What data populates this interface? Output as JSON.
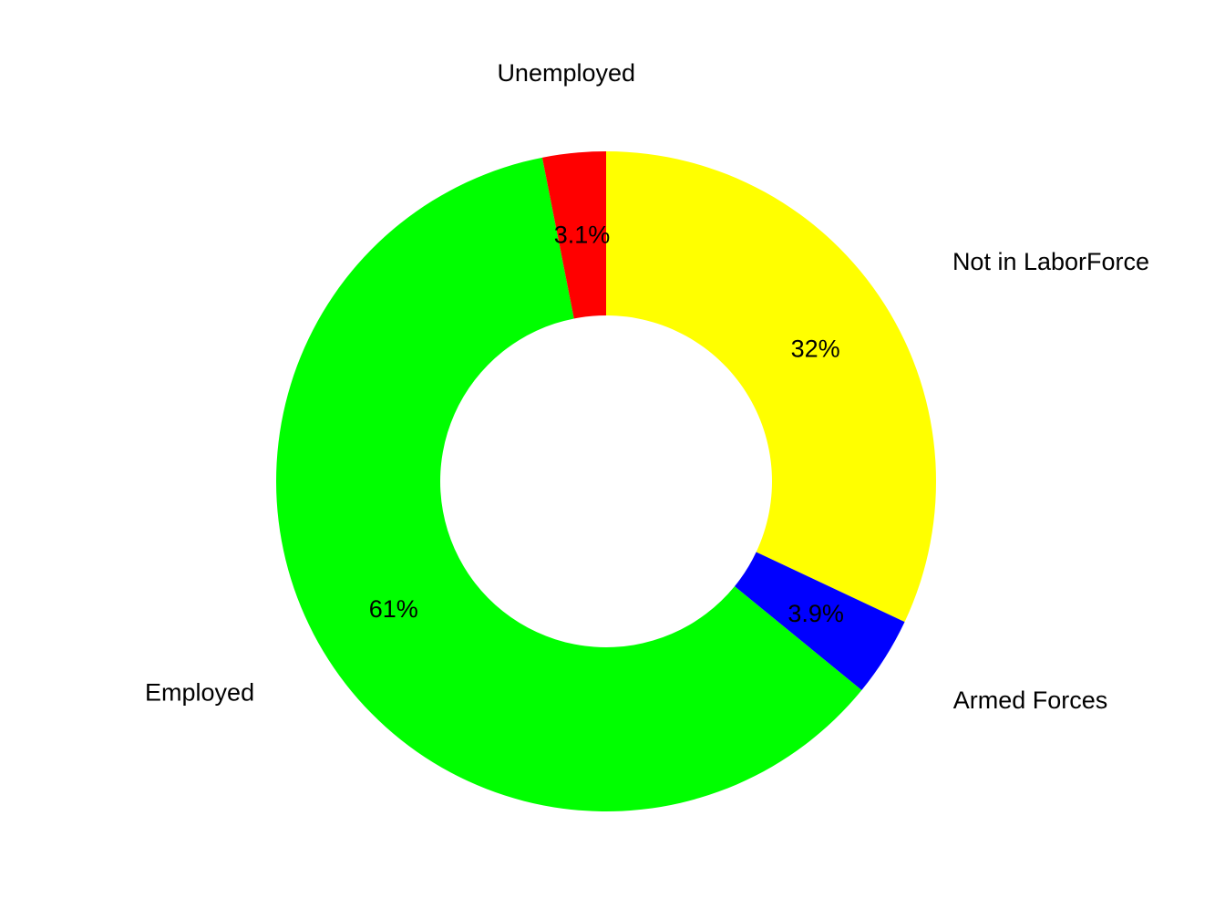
{
  "chart_data": {
    "type": "pie",
    "donut": true,
    "start_angle_deg": 90,
    "direction": "clockwise",
    "slices": [
      {
        "label": "Not in LaborForce",
        "value": 32.0,
        "pct_label": "32%",
        "color": "#FFFF00"
      },
      {
        "label": "Armed Forces",
        "value": 3.9,
        "pct_label": "3.9%",
        "color": "#0000FF"
      },
      {
        "label": "Employed",
        "value": 61.0,
        "pct_label": "61%",
        "color": "#00FF00"
      },
      {
        "label": "Unemployed",
        "value": 3.1,
        "pct_label": "3.1%",
        "color": "#FF0000"
      }
    ]
  }
}
